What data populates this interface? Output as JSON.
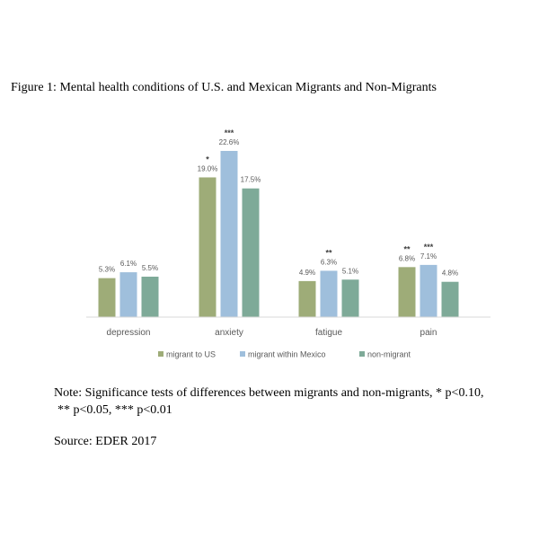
{
  "figure_title": "Figure 1: Mental health conditions of U.S. and Mexican Migrants and Non-Migrants",
  "note_line1": "Note: Significance tests of differences between migrants and non-migrants, * p<0.10,",
  "note_line2": "** p<0.05, *** p<0.01",
  "source": "Source: EDER 2017",
  "chart_data": {
    "type": "bar",
    "categories": [
      "depression",
      "anxiety",
      "fatigue",
      "pain"
    ],
    "series": [
      {
        "name": "migrant to US",
        "color": "#9eac78",
        "values": [
          5.3,
          19.0,
          4.9,
          6.8
        ],
        "labels": [
          "5.3%",
          "19.0%",
          "4.9%",
          "6.8%"
        ],
        "sig": [
          "",
          "*",
          "",
          "**"
        ]
      },
      {
        "name": "migrant within Mexico",
        "color": "#9fbfdc",
        "values": [
          6.1,
          22.6,
          6.3,
          7.1
        ],
        "labels": [
          "6.1%",
          "22.6%",
          "6.3%",
          "7.1%"
        ],
        "sig": [
          "",
          "***",
          "**",
          "***"
        ]
      },
      {
        "name": "non-migrant",
        "color": "#7eaa98",
        "values": [
          5.5,
          17.5,
          5.1,
          4.8
        ],
        "labels": [
          "5.5%",
          "17.5%",
          "5.1%",
          "4.8%"
        ],
        "sig": [
          "",
          "",
          "",
          ""
        ]
      }
    ],
    "ylim": [
      0,
      22.6
    ],
    "legend_position": "bottom",
    "grid": false
  }
}
